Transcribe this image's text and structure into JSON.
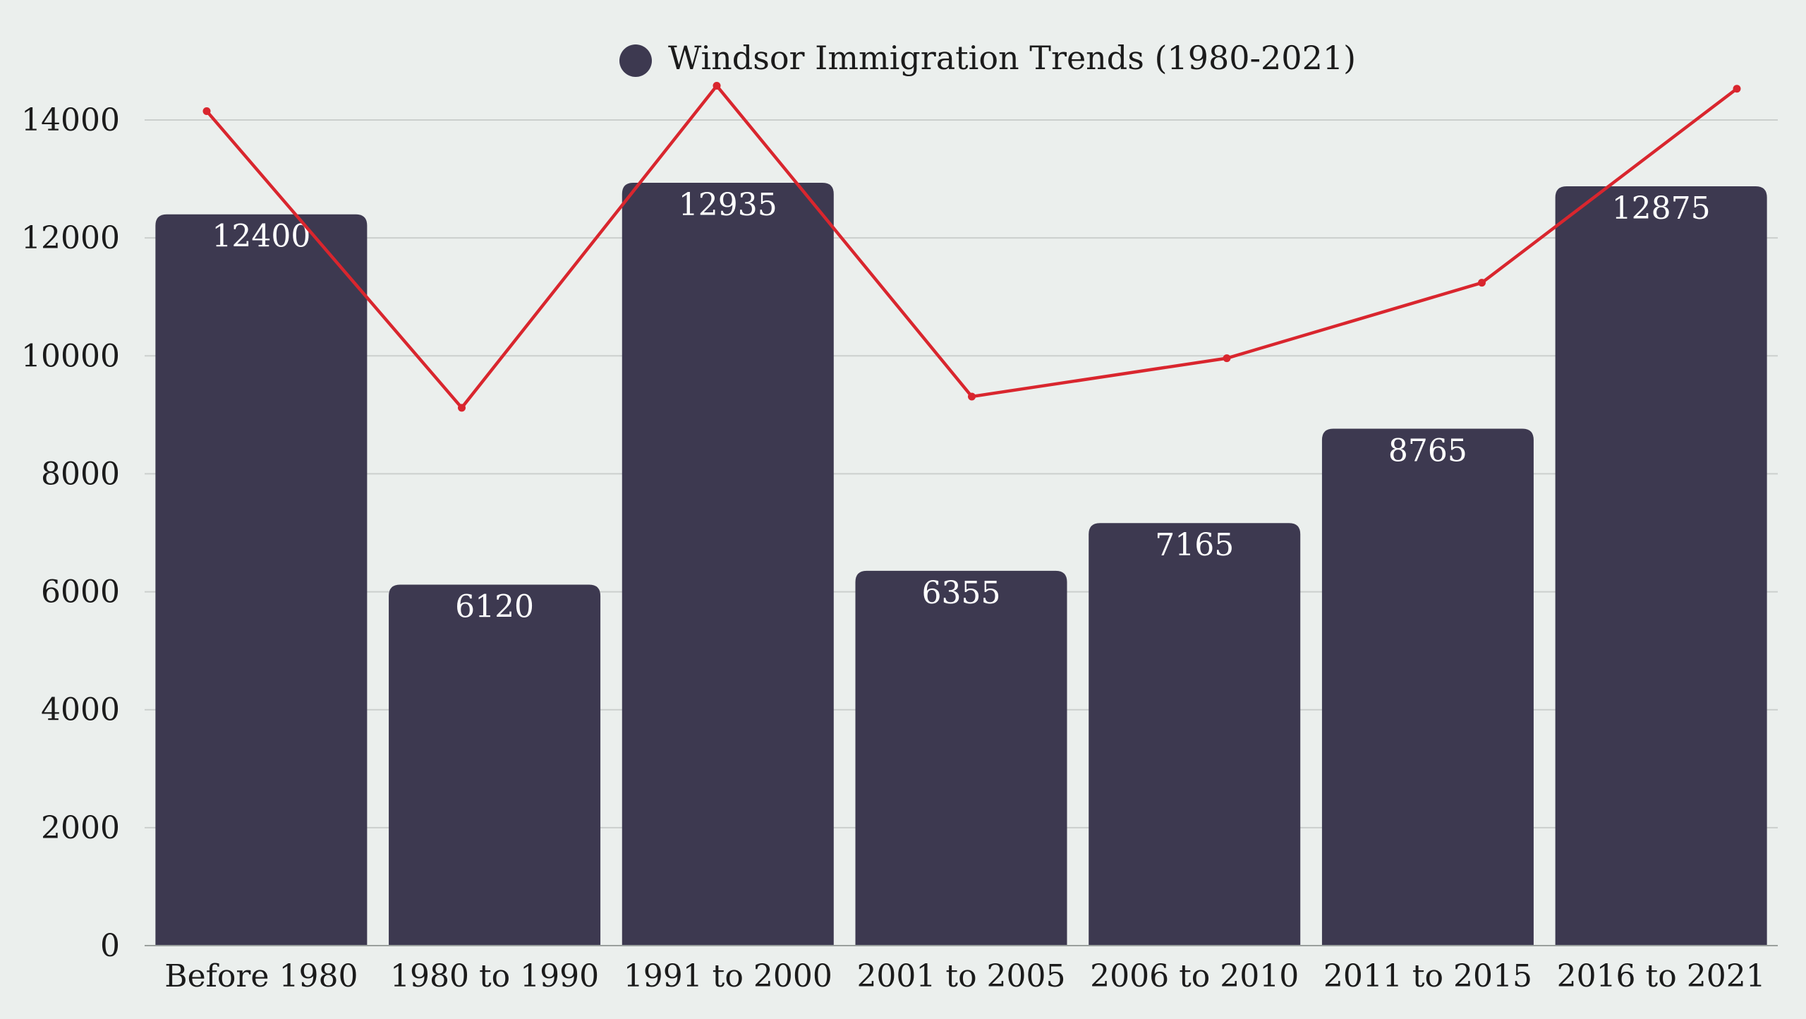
{
  "chart_data": {
    "type": "bar",
    "legend": {
      "label": "Windsor Immigration Trends (1980-2021)",
      "placement": "top-center"
    },
    "categories": [
      "Before 1980",
      "1980 to 1990",
      "1991 to 2000",
      "2001 to 2005",
      "2006 to 2010",
      "2011 to 2015",
      "2016 to 2021"
    ],
    "series": [
      {
        "type": "bar",
        "values": [
          12400,
          6120,
          12935,
          6355,
          7165,
          8765,
          12875
        ],
        "labels": [
          "12400",
          "6120",
          "12935",
          "6355",
          "7165",
          "8765",
          "12875"
        ]
      },
      {
        "type": "line",
        "values": [
          14150,
          9120,
          14580,
          9310,
          9960,
          11240,
          14530
        ]
      }
    ],
    "ylim": [
      0,
      14000
    ],
    "yticks": [
      0,
      2000,
      4000,
      6000,
      8000,
      10000,
      12000,
      14000
    ],
    "ytick_labels": [
      "0",
      "2000",
      "4000",
      "6000",
      "8000",
      "10000",
      "12000",
      "14000"
    ],
    "grid": true,
    "colors": {
      "background": "#ebefed",
      "bar": "#3d3950",
      "line": "#d9262e",
      "grid": "#cbcfcd",
      "bar_label": "#ffffff",
      "axis_text": "#1b1b1b"
    }
  }
}
